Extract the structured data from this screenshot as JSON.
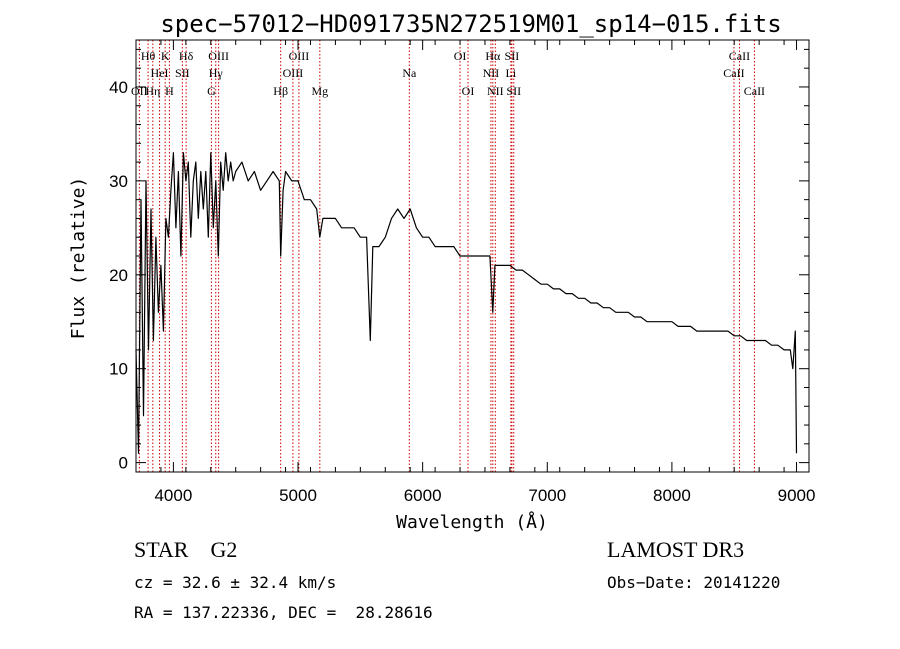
{
  "chart_data": {
    "type": "line",
    "title": "spec−57012−HD091735N272519M01_sp14−015.fits",
    "xlabel": "Wavelength (Å)",
    "ylabel": "Flux (relative)",
    "xlim": [
      3700,
      9100
    ],
    "ylim": [
      -1,
      45
    ],
    "xticks": [
      4000,
      5000,
      6000,
      7000,
      8000,
      9000
    ],
    "yticks": [
      0,
      10,
      20,
      30,
      40
    ],
    "grid": false,
    "series": [
      {
        "name": "flux",
        "x": [
          3700,
          3720,
          3740,
          3760,
          3780,
          3800,
          3820,
          3840,
          3860,
          3880,
          3900,
          3920,
          3940,
          3960,
          3980,
          4000,
          4020,
          4040,
          4060,
          4080,
          4100,
          4120,
          4140,
          4160,
          4180,
          4200,
          4220,
          4240,
          4260,
          4280,
          4300,
          4320,
          4340,
          4360,
          4380,
          4400,
          4420,
          4440,
          4460,
          4480,
          4500,
          4550,
          4600,
          4650,
          4700,
          4750,
          4800,
          4850,
          4861,
          4880,
          4900,
          4950,
          5000,
          5050,
          5100,
          5150,
          5175,
          5200,
          5250,
          5300,
          5350,
          5400,
          5450,
          5500,
          5550,
          5580,
          5600,
          5650,
          5700,
          5750,
          5800,
          5850,
          5900,
          5950,
          6000,
          6050,
          6100,
          6150,
          6200,
          6250,
          6300,
          6350,
          6400,
          6450,
          6500,
          6540,
          6563,
          6580,
          6600,
          6650,
          6700,
          6750,
          6800,
          6850,
          6900,
          6950,
          7000,
          7050,
          7100,
          7150,
          7200,
          7250,
          7300,
          7350,
          7400,
          7450,
          7500,
          7550,
          7600,
          7650,
          7700,
          7750,
          7800,
          7850,
          7900,
          7950,
          8000,
          8050,
          8100,
          8150,
          8200,
          8250,
          8300,
          8350,
          8400,
          8450,
          8500,
          8550,
          8600,
          8650,
          8700,
          8750,
          8800,
          8850,
          8900,
          8950,
          8970,
          8990,
          9000
        ],
        "y": [
          12,
          1,
          28,
          5,
          30,
          12,
          27,
          13,
          24,
          16,
          21,
          14,
          26,
          24,
          29,
          33,
          25,
          31,
          22,
          33,
          30,
          32,
          24,
          30,
          32,
          26,
          31,
          27,
          31,
          24,
          33,
          25,
          30,
          22,
          32,
          29,
          33,
          30,
          32,
          30,
          31,
          32,
          30,
          31,
          29,
          30,
          31,
          30,
          22,
          29,
          31,
          30,
          30,
          28,
          28,
          27,
          24,
          26,
          26,
          26,
          25,
          25,
          25,
          24,
          24,
          13,
          23,
          23,
          24,
          26,
          27,
          26,
          27,
          25,
          24,
          24,
          23,
          23,
          23,
          23,
          22,
          22,
          22,
          22,
          22,
          22,
          16,
          21,
          21,
          21,
          21,
          20.5,
          20.5,
          20,
          19.5,
          19,
          19,
          18.5,
          18.5,
          18,
          18,
          17.5,
          17.5,
          17,
          17,
          16.5,
          16.5,
          16,
          16,
          16,
          15.5,
          15.5,
          15,
          15,
          15,
          15,
          15,
          14.5,
          14.5,
          14.5,
          14,
          14,
          14,
          14,
          14,
          14,
          13.5,
          13.5,
          13,
          13,
          13,
          13,
          12.5,
          12.5,
          12,
          12,
          10,
          14,
          1
        ]
      }
    ],
    "lines": [
      {
        "name": "OII",
        "x": 3727,
        "label": "OII",
        "row": 2
      },
      {
        "name": "Hη",
        "x": 3835,
        "label": "Hη",
        "row": 2
      },
      {
        "name": "Hθ",
        "x": 3797,
        "label": "Hθ",
        "row": 0
      },
      {
        "name": "HeI",
        "x": 3889,
        "label": "HeI",
        "row": 1
      },
      {
        "name": "K",
        "x": 3934,
        "label": "K",
        "row": 0
      },
      {
        "name": "SII",
        "x": 4072,
        "label": "SII",
        "row": 1
      },
      {
        "name": "H",
        "x": 3968,
        "label": "H",
        "row": 2
      },
      {
        "name": "Hδ",
        "x": 4102,
        "label": "Hδ",
        "row": 0
      },
      {
        "name": "OIII-4363",
        "x": 4363,
        "label": "OIII",
        "row": 0
      },
      {
        "name": "Hγ",
        "x": 4340,
        "label": "Hγ",
        "row": 1
      },
      {
        "name": "G",
        "x": 4305,
        "label": "G",
        "row": 2
      },
      {
        "name": "Hβ",
        "x": 4861,
        "label": "Hβ",
        "row": 2
      },
      {
        "name": "OIII-5007",
        "x": 5007,
        "label": "OIII",
        "row": 0
      },
      {
        "name": "OIII-4959",
        "x": 4959,
        "label": "OIII",
        "row": 1
      },
      {
        "name": "Mg",
        "x": 5175,
        "label": "Mg",
        "row": 2
      },
      {
        "name": "Na",
        "x": 5893,
        "label": "Na",
        "row": 1
      },
      {
        "name": "OI-6300",
        "x": 6300,
        "label": "OI",
        "row": 0
      },
      {
        "name": "OI-6364",
        "x": 6364,
        "label": "OI",
        "row": 2
      },
      {
        "name": "Hα",
        "x": 6563,
        "label": "Hα",
        "row": 0
      },
      {
        "name": "NII-6548",
        "x": 6548,
        "label": "NII",
        "row": 1
      },
      {
        "name": "NII-6583",
        "x": 6583,
        "label": "NII",
        "row": 2
      },
      {
        "name": "SII-6716",
        "x": 6716,
        "label": "SII",
        "row": 0
      },
      {
        "name": "Li",
        "x": 6708,
        "label": "Li",
        "row": 1
      },
      {
        "name": "SII-6731",
        "x": 6731,
        "label": "SII",
        "row": 2
      },
      {
        "name": "CaII-8542",
        "x": 8542,
        "label": "CaII",
        "row": 0
      },
      {
        "name": "CaII-8498",
        "x": 8498,
        "label": "CaII",
        "row": 1
      },
      {
        "name": "CaII-8662",
        "x": 8662,
        "label": "CaII",
        "row": 2
      }
    ]
  },
  "footer": {
    "object_class": "STAR    G2",
    "survey": "LAMOST DR3",
    "redshift": "cz = 32.6 ± 32.4 km/s",
    "obs_date": "Obs−Date: 20141220",
    "coords": "RA = 137.22336, DEC =  28.28616"
  },
  "colors": {
    "spectrum": "#000000",
    "line_markers": "#cc0000",
    "axes": "#000000",
    "background": "#ffffff"
  }
}
